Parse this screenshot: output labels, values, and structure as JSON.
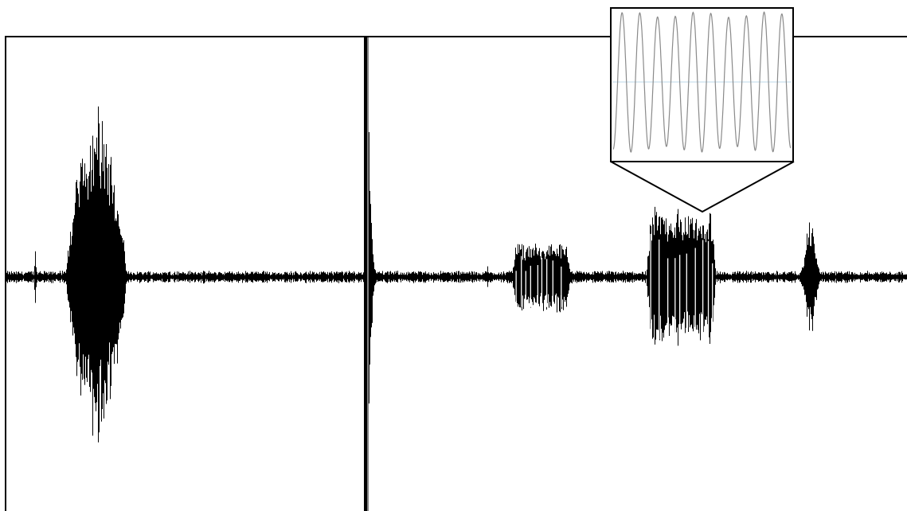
{
  "figure": {
    "description_text": "",
    "colors": {
      "background": "#ffffff",
      "frame": "#000000",
      "waveform": "#000000",
      "inset_wave": "#8a8a8a",
      "inset_midline": "#bcd8ea"
    },
    "panels": [
      {
        "name": "left-panel"
      },
      {
        "name": "right-panel"
      }
    ]
  },
  "chart_data": [
    {
      "type": "line",
      "title": "",
      "xlabel": "",
      "ylabel": "",
      "axes_visible": false,
      "grid": false,
      "ylim": [
        -1,
        1
      ],
      "xlim": [
        0,
        1
      ],
      "baseline_noise_amplitude": 0.02,
      "bursts": [
        {
          "center": 0.25,
          "width": 0.17,
          "amplitude": 0.62,
          "shape": "spindle"
        },
        {
          "center": 0.08,
          "width": 0.012,
          "amplitude": 0.12,
          "shape": "click"
        }
      ]
    },
    {
      "type": "line",
      "title": "",
      "xlabel": "",
      "ylabel": "",
      "axes_visible": false,
      "grid": false,
      "ylim": [
        -1,
        1
      ],
      "xlim": [
        0,
        1
      ],
      "baseline_noise_amplitude": 0.02,
      "bursts": [
        {
          "center": 0.005,
          "width": 0.02,
          "amplitude": 0.98,
          "shape": "transient"
        },
        {
          "center": 0.32,
          "width": 0.11,
          "amplitude": 0.14,
          "shape": "block"
        },
        {
          "center": 0.58,
          "width": 0.13,
          "amplitude": 0.29,
          "shape": "block"
        },
        {
          "center": 0.82,
          "width": 0.04,
          "amplitude": 0.23,
          "shape": "chirp"
        },
        {
          "center": 0.22,
          "width": 0.006,
          "amplitude": 0.05,
          "shape": "click"
        }
      ]
    },
    {
      "type": "line",
      "title": "",
      "xlabel": "",
      "ylabel": "",
      "role": "zoom-inset",
      "zoomed_burst_index": 2,
      "cycles_shown": 10,
      "axes_visible": false,
      "grid": false,
      "ylim": [
        -1,
        1
      ]
    }
  ]
}
